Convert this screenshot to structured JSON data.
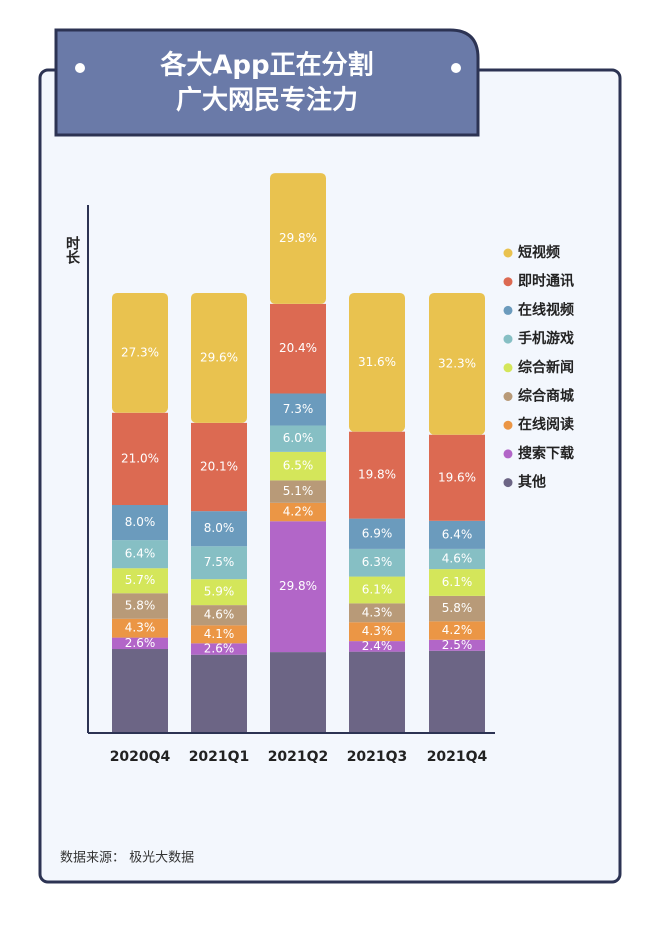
{
  "chart_data": {
    "type": "stacked_bar",
    "title": [
      "各大App正在分割",
      "广大网民专注力"
    ],
    "y_label": "时长",
    "source": "数据来源： 极光大数据",
    "categories": [
      "2020Q4",
      "2021Q1",
      "2021Q2",
      "2021Q3",
      "2021Q4"
    ],
    "ylim": [
      0,
      128
    ],
    "series": [
      {
        "name": "其他",
        "color": "#6c6585",
        "values": [
          18.9,
          17.6,
          18.2,
          18.3,
          18.5
        ]
      },
      {
        "name": "搜索下载",
        "color": "#b266c8",
        "values": [
          2.6,
          2.6,
          29.8,
          2.4,
          2.5
        ],
        "value_labels": [
          "2.6%",
          "2.6%",
          "29.8%",
          "2.4%",
          "2.5%"
        ]
      },
      {
        "name": "在线阅读",
        "color": "#eb9645",
        "values": [
          4.3,
          4.1,
          4.2,
          4.3,
          4.2
        ],
        "value_labels": [
          "4.3%",
          "4.1%",
          "4.2%",
          "4.3%",
          "4.2%"
        ]
      },
      {
        "name": "综合商城",
        "color": "#b89a78",
        "values": [
          5.8,
          4.6,
          5.1,
          4.3,
          5.8
        ],
        "value_labels": [
          "5.8%",
          "4.6%",
          "5.1%",
          "4.3%",
          "5.8%"
        ]
      },
      {
        "name": "综合新闻",
        "color": "#d4e65a",
        "values": [
          5.7,
          5.9,
          6.5,
          6.1,
          6.1
        ],
        "value_labels": [
          "5.7%",
          "5.9%",
          "6.5%",
          "6.1%",
          "6.1%"
        ]
      },
      {
        "name": "手机游戏",
        "color": "#86bfc4",
        "values": [
          6.4,
          7.5,
          6.0,
          6.3,
          4.6
        ],
        "value_labels": [
          "6.4%",
          "7.5%",
          "6.0%",
          "6.3%",
          "4.6%"
        ]
      },
      {
        "name": "在线视频",
        "color": "#6b9bbd",
        "values": [
          8.0,
          8.0,
          7.3,
          6.9,
          6.4
        ],
        "value_labels": [
          "8.0%",
          "8.0%",
          "7.3%",
          "6.9%",
          "6.4%"
        ]
      },
      {
        "name": "即时通讯",
        "color": "#dc6a52",
        "values": [
          21.0,
          20.1,
          20.4,
          19.8,
          19.6
        ],
        "value_labels": [
          "21.0%",
          "20.1%",
          "20.4%",
          "19.8%",
          "19.6%"
        ]
      },
      {
        "name": "短视频",
        "color": "#e9c24f",
        "values": [
          27.3,
          29.6,
          29.8,
          31.6,
          32.3
        ],
        "value_labels": [
          "27.3%",
          "29.6%",
          "29.8%",
          "31.6%",
          "32.3%"
        ]
      }
    ]
  }
}
